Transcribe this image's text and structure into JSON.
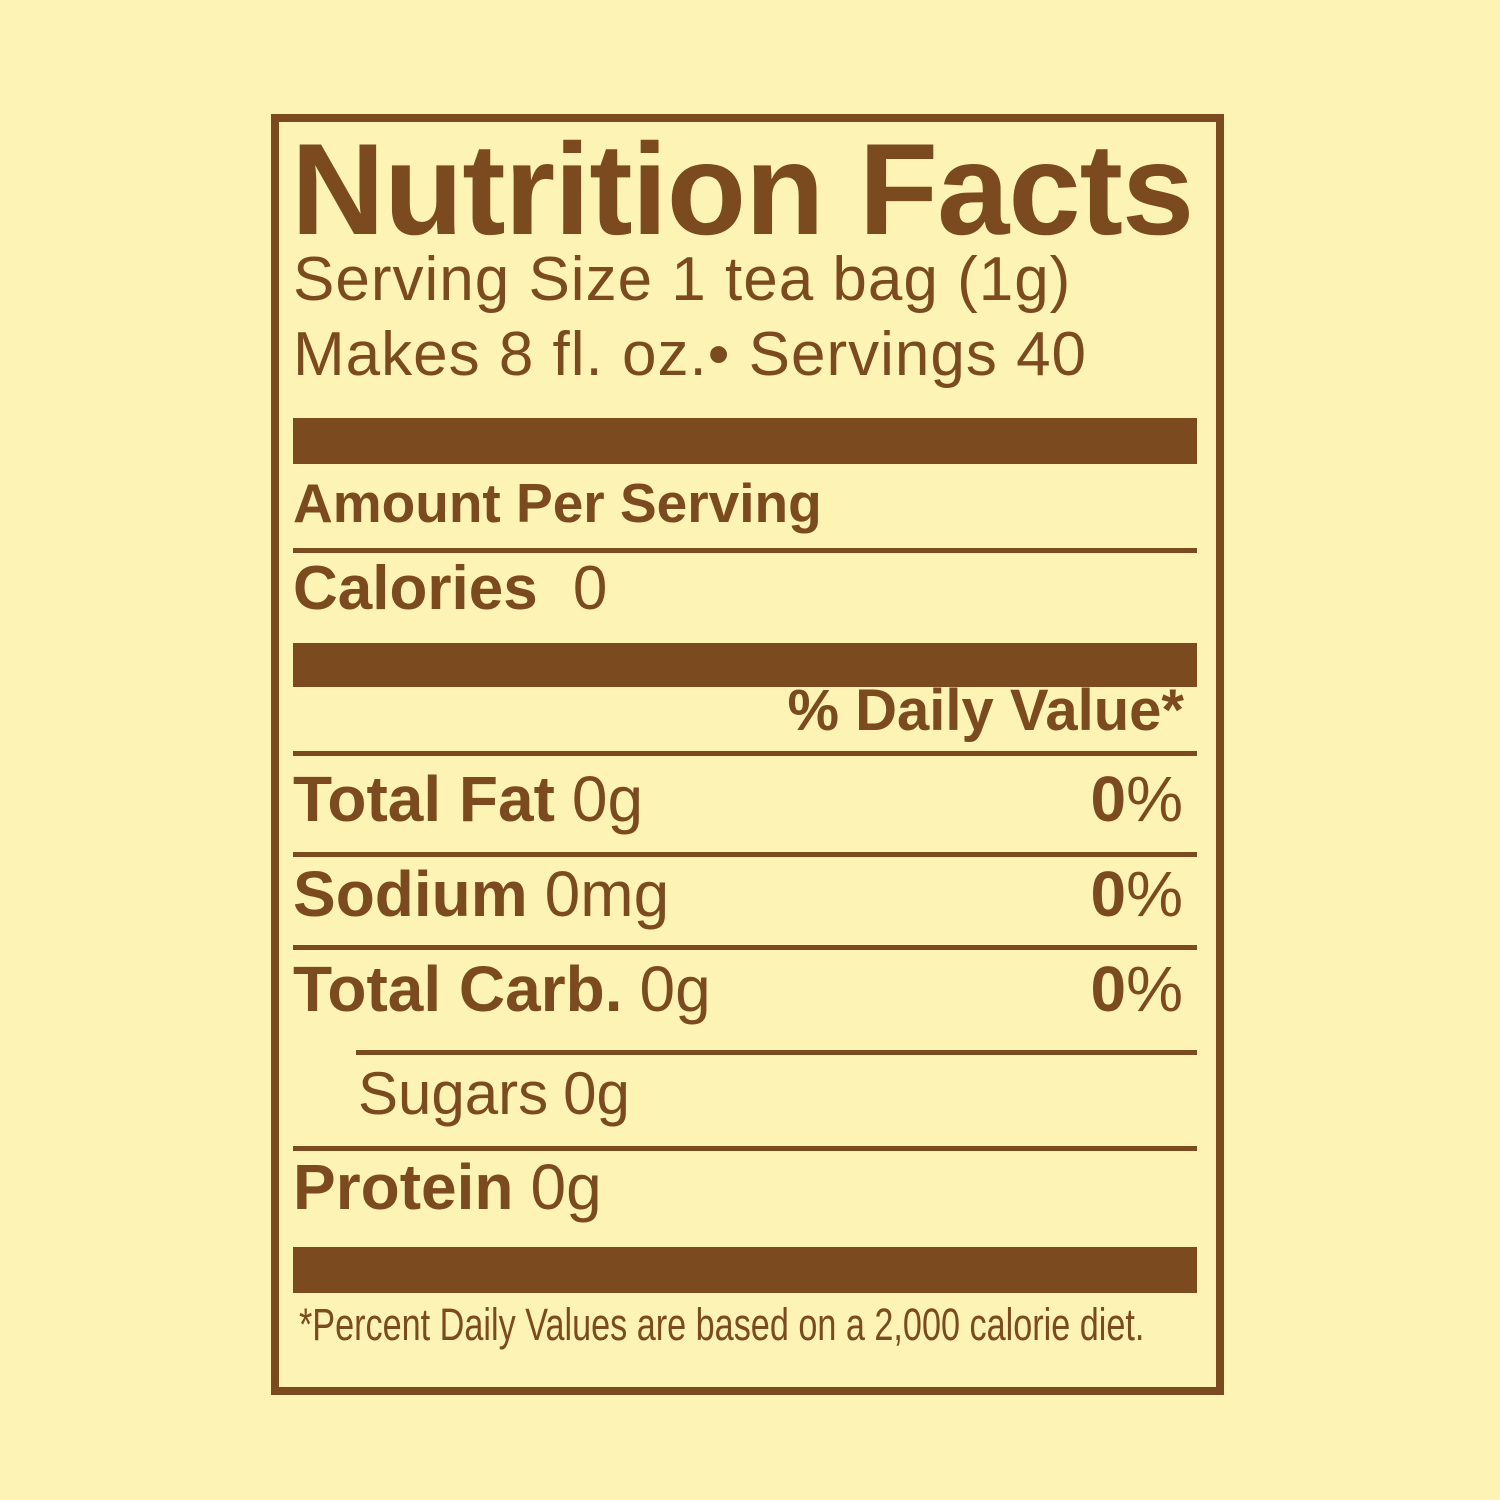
{
  "colors": {
    "background": "#FCF3B4",
    "ink": "#7B4A1E"
  },
  "nutrition_label": {
    "title": "Nutrition Facts",
    "serving_size_line": "Serving Size 1 tea bag (1g)",
    "servings_line": "Makes 8 fl. oz.• Servings 40",
    "amount_per_serving_heading": "Amount Per Serving",
    "calories": {
      "name": "Calories",
      "value": "0"
    },
    "daily_value_heading": "% Daily Value*",
    "rows": [
      {
        "name": "Total Fat",
        "amount": "0g",
        "dv_value": "0",
        "dv_unit": "%"
      },
      {
        "name": "Sodium",
        "amount": "0mg",
        "dv_value": "0",
        "dv_unit": "%"
      },
      {
        "name": "Total Carb.",
        "amount": "0g",
        "dv_value": "0",
        "dv_unit": "%"
      }
    ],
    "sugars": {
      "name": "Sugars",
      "amount": "0g"
    },
    "protein": {
      "name": "Protein",
      "amount": "0g"
    },
    "footnote": "*Percent Daily Values are based on a 2,000 calorie diet."
  }
}
